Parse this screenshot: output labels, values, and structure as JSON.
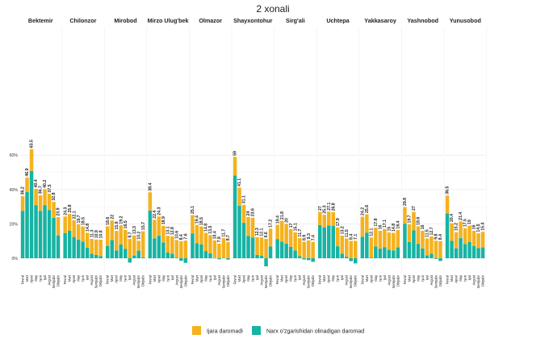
{
  "chart_data": {
    "type": "bar",
    "stacked": true,
    "title": "2 xonali",
    "months": [
      "Fevral",
      "Mart",
      "Aprel",
      "May",
      "Iyun",
      "Iyul",
      "Avgust",
      "Sentyabr",
      "Oktyabr"
    ],
    "y_ticks": [
      "60%",
      "40%",
      "20%",
      "0%"
    ],
    "ylim": [
      -5,
      66
    ],
    "colors": {
      "rent": "#F5B21E",
      "appreciation": "#17B3A3"
    },
    "legend": {
      "rent": "Ijara daromadi",
      "appreciation": "Narx o'zgarishidan olinadigan daromad"
    },
    "panels": [
      {
        "name": "Bektemir",
        "totals": [
          36.2,
          46.9,
          63.5,
          40.4,
          36.7,
          40.2,
          37.5,
          32.8,
          23.9
        ],
        "appreciation": [
          27.6,
          38.6,
          50.8,
          30.9,
          27.6,
          30.9,
          28.1,
          23.5,
          13.3
        ],
        "labels": [
          "36.2",
          "46.9",
          "63.5",
          "40.4",
          "36.7",
          "40.2",
          "37.5",
          "32.8",
          "23.9"
        ]
      },
      {
        "name": "Chilonzor",
        "totals": [
          24.3,
          25.8,
          22.1,
          19.7,
          18.5,
          14.8,
          11.3,
          10.9,
          10.8
        ],
        "appreciation": [
          14.7,
          16.1,
          12.4,
          10.9,
          9.7,
          6.2,
          2.6,
          1.9,
          1.2
        ],
        "labels": [
          "24.3",
          "25.8",
          "22.1",
          "19.7",
          "18.5",
          "14.8",
          "11.3",
          "10.9",
          "10.8"
        ]
      },
      {
        "name": "Mirobod",
        "totals": [
          18.6,
          22.0,
          15.9,
          19.2,
          16.5,
          8.7,
          13.3,
          10.2,
          15.7
        ],
        "appreciation": [
          7.2,
          10.6,
          4.6,
          8.1,
          5.4,
          -2.5,
          1.6,
          4.4,
          0.6
        ],
        "labels": [
          "18.6",
          "22",
          "15.9",
          "19.2",
          "16.5",
          "8.7",
          "13.3",
          "10.2",
          "15.7"
        ]
      },
      {
        "name": "Mirzo Ulug'bek",
        "totals": [
          38.4,
          22.4,
          24.3,
          18.9,
          13.1,
          12.8,
          10.6,
          8.4,
          7.6
        ],
        "appreciation": [
          27.8,
          11.6,
          13.1,
          9.2,
          3.3,
          2.6,
          0.4,
          -1.5,
          -2.7
        ],
        "labels": [
          "38.4",
          "22.4",
          "24.3",
          "18.9",
          "13.1",
          "12.8",
          "10.6",
          "8.4",
          "7.6"
        ]
      },
      {
        "name": "Olmazor",
        "totals": [
          25.1,
          19.4,
          18.5,
          14.8,
          13.5,
          10.4,
          7.9,
          11.7,
          8.7
        ],
        "appreciation": [
          14.5,
          8.8,
          8.0,
          4.2,
          2.9,
          0.0,
          -0.6,
          0.3,
          -0.8
        ],
        "labels": [
          "25.1",
          "19.4",
          "18.5",
          "14.8",
          "13.5",
          "10.4",
          "7.9",
          "11.7",
          "8.7"
        ]
      },
      {
        "name": "Shayxontohur",
        "totals": [
          59.0,
          41.1,
          31.1,
          24.0,
          23.6,
          12.3,
          12.1,
          6.6,
          17.2
        ],
        "appreciation": [
          48.1,
          30.5,
          20.6,
          12.9,
          12.1,
          1.9,
          1.4,
          -4.7,
          6.9
        ],
        "labels": [
          "59",
          "41.1",
          "31.1",
          "24",
          "23.6",
          "12.3",
          "12.1",
          "6.6",
          "17.2"
        ]
      },
      {
        "name": "Sirg'ali",
        "totals": [
          19.4,
          21.8,
          20.0,
          17.0,
          15.1,
          11.7,
          8.9,
          9.3,
          7.4
        ],
        "appreciation": [
          11.2,
          9.6,
          8.5,
          6.6,
          4.5,
          1.2,
          -0.7,
          -1.1,
          -2.1
        ],
        "labels": [
          "19.4",
          "21.8",
          "20",
          "17",
          "15.1",
          "11.7",
          "8.9",
          "9.3",
          "7.4"
        ]
      },
      {
        "name": "Uchtepa",
        "totals": [
          27.0,
          25.3,
          27.1,
          26.8,
          17.9,
          13.2,
          11.5,
          8.4,
          7.1
        ],
        "appreciation": [
          19.3,
          18.0,
          19.1,
          18.9,
          7.0,
          2.7,
          0.9,
          -1.7,
          -3.0
        ],
        "labels": [
          "27",
          "25.3",
          "27.1",
          "26.8",
          "17.9",
          "13.2",
          "11.5",
          "8.4",
          "7.1"
        ]
      },
      {
        "name": "Yakkasaroy",
        "totals": [
          24.2,
          25.6,
          12.1,
          17.8,
          16.0,
          17.1,
          15.0,
          14.8,
          16.4
        ],
        "appreciation": [
          12.5,
          14.9,
          0.4,
          6.9,
          5.6,
          6.5,
          4.9,
          4.5,
          6.3
        ],
        "labels": [
          "24.2",
          "25.6",
          "12.1",
          "17.8",
          "16",
          "17.1",
          "15",
          "14.8",
          "16.4"
        ]
      },
      {
        "name": "Yashnobod",
        "totals": [
          29.8,
          19.7,
          27.0,
          18.6,
          16.0,
          11.5,
          12.7,
          9.8,
          8.4
        ],
        "appreciation": [
          20.1,
          9.4,
          16.2,
          8.4,
          5.7,
          1.7,
          2.7,
          -0.4,
          -1.6
        ],
        "labels": [
          "29.8",
          "19.7",
          "27",
          "18.6",
          "16",
          "11.5",
          "12.7",
          "9.8",
          "8.4"
        ]
      },
      {
        "name": "Yunusobod",
        "totals": [
          36.5,
          20.4,
          15.2,
          21.4,
          17.5,
          19.0,
          16.0,
          14.5,
          15.4
        ],
        "appreciation": [
          26.1,
          10.2,
          5.8,
          11.7,
          8.3,
          9.4,
          7.2,
          5.9,
          6.3
        ],
        "labels": [
          "36.5",
          "20.4",
          "15.2",
          "21.4",
          "17.5",
          "19",
          "16",
          "14.5",
          "15.4"
        ]
      }
    ]
  }
}
